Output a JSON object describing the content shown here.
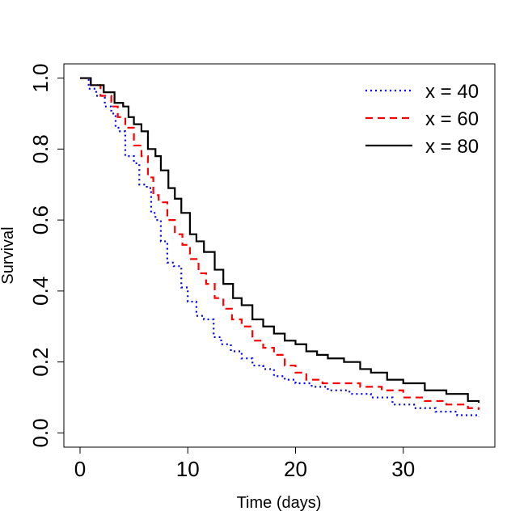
{
  "chart_data": {
    "type": "line",
    "title": "",
    "xlabel": "Time (days)",
    "ylabel": "Survival",
    "xlim": [
      -1.5,
      38.5
    ],
    "ylim": [
      -0.04,
      1.04
    ],
    "xticks": [
      0,
      10,
      20,
      30
    ],
    "xtick_labels": [
      "0",
      "10",
      "20",
      "30"
    ],
    "yticks": [
      0.0,
      0.2,
      0.4,
      0.6,
      0.8,
      1.0
    ],
    "ytick_labels": [
      "0.0",
      "0.2",
      "0.4",
      "0.6",
      "0.8",
      "1.0"
    ],
    "legend_position": "top-right",
    "step": true,
    "series": [
      {
        "name": "x = 40",
        "color": "#0000ff",
        "dash": "dotted",
        "x": [
          0,
          0.8,
          1.5,
          2.3,
          2.9,
          3.3,
          3.7,
          4.2,
          5.0,
          5.5,
          6.2,
          6.6,
          7.0,
          7.5,
          8.1,
          8.7,
          9.4,
          10.0,
          10.8,
          11.5,
          12.4,
          13.1,
          14.0,
          15.0,
          16.0,
          17.0,
          18.0,
          19.0,
          20.0,
          21.5,
          23.0,
          25.0,
          27.0,
          29.0,
          31.0,
          33.0,
          35.0,
          37.0
        ],
        "y": [
          1.0,
          0.97,
          0.95,
          0.92,
          0.9,
          0.86,
          0.85,
          0.78,
          0.76,
          0.7,
          0.69,
          0.62,
          0.6,
          0.54,
          0.48,
          0.47,
          0.41,
          0.37,
          0.33,
          0.32,
          0.27,
          0.25,
          0.23,
          0.21,
          0.19,
          0.18,
          0.16,
          0.15,
          0.14,
          0.13,
          0.12,
          0.11,
          0.1,
          0.08,
          0.07,
          0.06,
          0.05,
          0.045
        ]
      },
      {
        "name": "x = 60",
        "color": "#ff0000",
        "dash": "dashed",
        "x": [
          0,
          1.0,
          1.9,
          2.9,
          3.5,
          4.2,
          5.0,
          5.7,
          6.3,
          6.8,
          7.3,
          8.1,
          8.8,
          9.5,
          10.2,
          11.0,
          11.7,
          12.5,
          13.3,
          14.1,
          15.0,
          16.0,
          17.0,
          18.0,
          19.0,
          20.0,
          21.0,
          22.5,
          24.0,
          26.0,
          28.0,
          30.0,
          32.0,
          34.0,
          36.0,
          37.0
        ],
        "y": [
          1.0,
          0.98,
          0.95,
          0.92,
          0.89,
          0.86,
          0.81,
          0.78,
          0.72,
          0.67,
          0.65,
          0.6,
          0.56,
          0.53,
          0.49,
          0.45,
          0.42,
          0.38,
          0.35,
          0.32,
          0.3,
          0.26,
          0.24,
          0.22,
          0.19,
          0.17,
          0.15,
          0.14,
          0.14,
          0.13,
          0.12,
          0.1,
          0.09,
          0.08,
          0.07,
          0.065
        ]
      },
      {
        "name": "x = 80",
        "color": "#000000",
        "dash": "solid",
        "x": [
          0,
          1.0,
          2.2,
          3.2,
          4.0,
          4.5,
          5.0,
          5.7,
          6.3,
          7.0,
          7.5,
          8.2,
          8.8,
          9.4,
          10.2,
          10.8,
          11.5,
          12.5,
          13.3,
          14.2,
          15.0,
          16.0,
          17.0,
          18.0,
          19.0,
          20.0,
          21.0,
          22.0,
          23.0,
          24.5,
          26.0,
          27.0,
          28.5,
          30.0,
          32.0,
          34.0,
          36.0,
          37.0
        ],
        "y": [
          1.0,
          0.98,
          0.96,
          0.93,
          0.92,
          0.89,
          0.87,
          0.85,
          0.8,
          0.78,
          0.74,
          0.69,
          0.66,
          0.62,
          0.56,
          0.54,
          0.51,
          0.46,
          0.42,
          0.38,
          0.36,
          0.32,
          0.3,
          0.28,
          0.26,
          0.25,
          0.23,
          0.22,
          0.21,
          0.2,
          0.18,
          0.17,
          0.15,
          0.14,
          0.12,
          0.11,
          0.09,
          0.085
        ]
      }
    ]
  }
}
